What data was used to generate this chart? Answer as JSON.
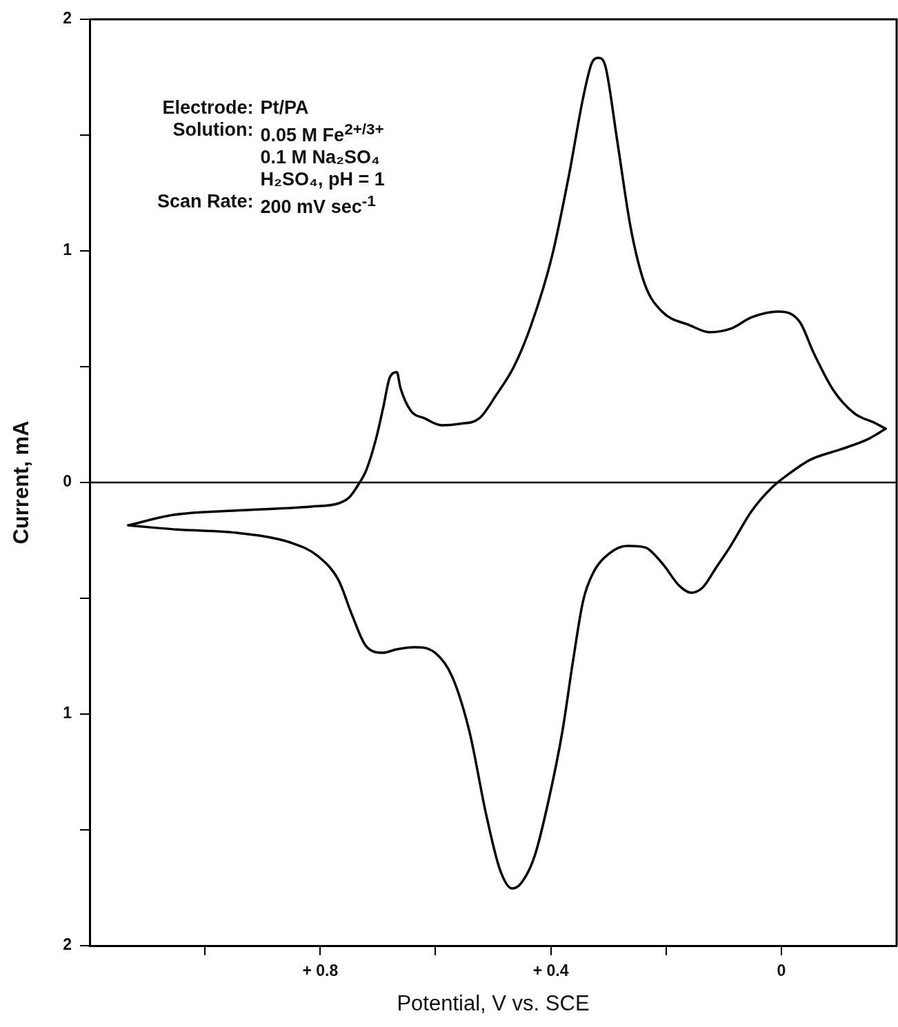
{
  "chart_data": {
    "type": "line",
    "xlabel": "Potential, V vs. SCE",
    "ylabel": "Current, mA",
    "xlim": [
      1.2,
      -0.2
    ],
    "xticks": [
      {
        "value": 1.0,
        "label": null
      },
      {
        "value": 0.8,
        "label": "+ 0.8"
      },
      {
        "value": 0.6,
        "label": null
      },
      {
        "value": 0.4,
        "label": "+ 0.4"
      },
      {
        "value": 0.2,
        "label": null
      },
      0
    ],
    "ylim": [
      -2,
      2
    ],
    "yticks": [
      {
        "value": -2,
        "label": "2"
      },
      {
        "value": -1.5,
        "label": null
      },
      {
        "value": -1,
        "label": "1"
      },
      {
        "value": -0.5,
        "label": null
      },
      0,
      {
        "value": 0.5,
        "label": null
      },
      1,
      {
        "value": 1.5,
        "label": null
      },
      2
    ],
    "grid": false,
    "legend": false,
    "marker": "none",
    "line_style": "solid",
    "ref_lines": [
      {
        "axis": "y",
        "value": 0,
        "color": "#000000"
      }
    ],
    "annotations": [
      "Electrode: Pt/PA",
      "Solution: 0.05 M Fe$^{2+/3+}$",
      "0.1 M Na₂SO₄",
      "H₂SO₄, pH = 1",
      "Scan Rate: 200 mV sec$^{-1}$"
    ],
    "series": [
      {
        "color": "#000000",
        "x": [
          1.133,
          1.055,
          0.936,
          0.816,
          0.768,
          0.75,
          0.733,
          0.72,
          0.703,
          0.691,
          0.679,
          0.667,
          0.661,
          0.643,
          0.619,
          0.589,
          0.559,
          0.524,
          0.494,
          0.464,
          0.434,
          0.398,
          0.368,
          0.344,
          0.329,
          0.317,
          0.305,
          0.285,
          0.261,
          0.237,
          0.207,
          0.159,
          0.124,
          0.088,
          0.051,
          0.004,
          -0.032,
          -0.056,
          -0.091,
          -0.127,
          -0.163,
          -0.181
        ],
        "values": [
          -0.185,
          -0.14,
          -0.12,
          -0.104,
          -0.09,
          -0.065,
          -0.006,
          0.054,
          0.19,
          0.32,
          0.455,
          0.476,
          0.41,
          0.31,
          0.277,
          0.247,
          0.253,
          0.277,
          0.38,
          0.5,
          0.68,
          0.976,
          1.333,
          1.66,
          1.81,
          1.833,
          1.795,
          1.48,
          1.095,
          0.857,
          0.738,
          0.679,
          0.649,
          0.664,
          0.714,
          0.738,
          0.693,
          0.56,
          0.396,
          0.298,
          0.256,
          0.232
        ]
      },
      {
        "color": "#000000",
        "x": [
          -0.181,
          -0.151,
          -0.103,
          -0.05,
          -0.014,
          0.016,
          0.052,
          0.088,
          0.112,
          0.136,
          0.156,
          0.177,
          0.207,
          0.237,
          0.267,
          0.297,
          0.327,
          0.344,
          0.362,
          0.38,
          0.404,
          0.428,
          0.452,
          0.467,
          0.488,
          0.512,
          0.541,
          0.571,
          0.601,
          0.637,
          0.667,
          0.691,
          0.721,
          0.745,
          0.768,
          0.804,
          0.852,
          0.936,
          1.055,
          1.133
        ],
        "values": [
          0.232,
          0.188,
          0.143,
          0.098,
          0.039,
          -0.021,
          -0.125,
          -0.274,
          -0.363,
          -0.452,
          -0.476,
          -0.446,
          -0.348,
          -0.28,
          -0.274,
          -0.304,
          -0.393,
          -0.512,
          -0.78,
          -1.077,
          -1.375,
          -1.613,
          -1.732,
          -1.753,
          -1.673,
          -1.435,
          -1.077,
          -0.839,
          -0.735,
          -0.711,
          -0.72,
          -0.735,
          -0.705,
          -0.571,
          -0.423,
          -0.318,
          -0.259,
          -0.22,
          -0.202,
          -0.185
        ]
      }
    ]
  }
}
